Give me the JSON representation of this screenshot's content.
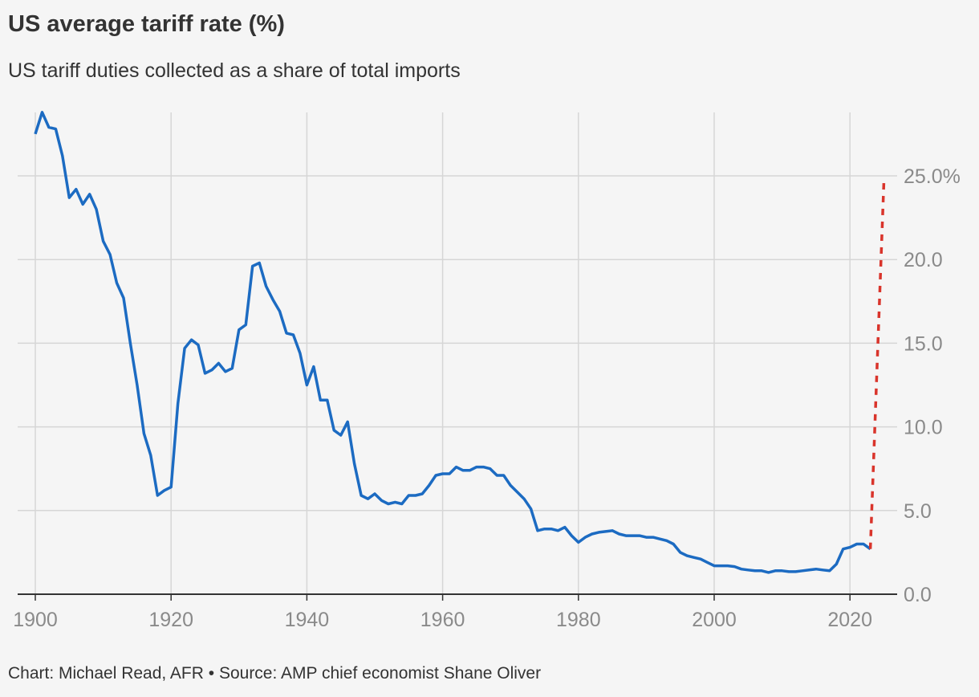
{
  "header": {
    "title": "US average tariff rate (%)",
    "subtitle": "US tariff duties collected as a share of total imports"
  },
  "footer": {
    "credit": "Chart: Michael Read, AFR • Source: AMP chief economist Shane Oliver"
  },
  "colors": {
    "background": "#f5f5f5",
    "series_line": "#1c6bc2",
    "projection": "#d9342b",
    "grid": "#d6d6d6",
    "axis": "#333333",
    "tick_text": "#8a8a8a"
  },
  "chart_data": {
    "type": "line",
    "title": "US average tariff rate (%)",
    "subtitle": "US tariff duties collected as a share of total imports",
    "xlabel": "",
    "ylabel": "",
    "xlim": [
      1900,
      2027
    ],
    "ylim": [
      0,
      29
    ],
    "grid": true,
    "y_axis_position": "right",
    "x_ticks": [
      {
        "value": 1900,
        "label": "1900"
      },
      {
        "value": 1920,
        "label": "1920"
      },
      {
        "value": 1940,
        "label": "1940"
      },
      {
        "value": 1960,
        "label": "1960"
      },
      {
        "value": 1980,
        "label": "1980"
      },
      {
        "value": 2000,
        "label": "2000"
      },
      {
        "value": 2020,
        "label": "2020"
      }
    ],
    "y_ticks": [
      {
        "value": 0,
        "label": "0.0"
      },
      {
        "value": 5,
        "label": "5.0"
      },
      {
        "value": 10,
        "label": "10.0"
      },
      {
        "value": 15,
        "label": "15.0"
      },
      {
        "value": 20,
        "label": "20.0"
      },
      {
        "value": 25,
        "label": "25.0%"
      }
    ],
    "series": [
      {
        "style": "solid",
        "color": "#1c6bc2",
        "x": [
          1900,
          1901,
          1902,
          1903,
          1904,
          1905,
          1906,
          1907,
          1908,
          1909,
          1910,
          1911,
          1912,
          1913,
          1914,
          1915,
          1916,
          1917,
          1918,
          1919,
          1920,
          1921,
          1922,
          1923,
          1924,
          1925,
          1926,
          1927,
          1928,
          1929,
          1930,
          1931,
          1932,
          1933,
          1934,
          1935,
          1936,
          1937,
          1938,
          1939,
          1940,
          1941,
          1942,
          1943,
          1944,
          1945,
          1946,
          1947,
          1948,
          1949,
          1950,
          1951,
          1952,
          1953,
          1954,
          1955,
          1956,
          1957,
          1958,
          1959,
          1960,
          1961,
          1962,
          1963,
          1964,
          1965,
          1966,
          1967,
          1968,
          1969,
          1970,
          1971,
          1972,
          1973,
          1974,
          1975,
          1976,
          1977,
          1978,
          1979,
          1980,
          1981,
          1982,
          1983,
          1984,
          1985,
          1986,
          1987,
          1988,
          1989,
          1990,
          1991,
          1992,
          1993,
          1994,
          1995,
          1996,
          1997,
          1998,
          1999,
          2000,
          2001,
          2002,
          2003,
          2004,
          2005,
          2006,
          2007,
          2008,
          2009,
          2010,
          2011,
          2012,
          2013,
          2014,
          2015,
          2016,
          2017,
          2018,
          2019,
          2020,
          2021,
          2022,
          2023
        ],
        "y": [
          27.5,
          28.8,
          27.9,
          27.8,
          26.2,
          23.7,
          24.2,
          23.3,
          23.9,
          23.0,
          21.1,
          20.3,
          18.6,
          17.7,
          15.0,
          12.5,
          9.6,
          8.3,
          5.9,
          6.2,
          6.4,
          11.4,
          14.7,
          15.2,
          14.9,
          13.2,
          13.4,
          13.8,
          13.3,
          13.5,
          15.8,
          16.1,
          19.6,
          19.8,
          18.4,
          17.6,
          16.9,
          15.6,
          15.5,
          14.4,
          12.5,
          13.6,
          11.6,
          11.6,
          9.8,
          9.5,
          10.3,
          7.8,
          5.9,
          5.7,
          6.0,
          5.6,
          5.4,
          5.5,
          5.4,
          5.9,
          5.9,
          6.0,
          6.5,
          7.1,
          7.2,
          7.2,
          7.6,
          7.4,
          7.4,
          7.6,
          7.6,
          7.5,
          7.1,
          7.1,
          6.5,
          6.1,
          5.7,
          5.1,
          3.8,
          3.9,
          3.9,
          3.8,
          4.0,
          3.5,
          3.1,
          3.4,
          3.6,
          3.7,
          3.75,
          3.8,
          3.6,
          3.5,
          3.5,
          3.5,
          3.4,
          3.4,
          3.3,
          3.2,
          3.0,
          2.5,
          2.3,
          2.2,
          2.1,
          1.9,
          1.7,
          1.7,
          1.7,
          1.65,
          1.5,
          1.45,
          1.4,
          1.4,
          1.3,
          1.4,
          1.4,
          1.35,
          1.35,
          1.4,
          1.45,
          1.5,
          1.45,
          1.4,
          1.8,
          2.7,
          2.8,
          3.0,
          3.0,
          2.7
        ]
      },
      {
        "style": "dashed",
        "color": "#d9342b",
        "x": [
          2023,
          2025
        ],
        "y": [
          2.7,
          24.7
        ]
      }
    ]
  }
}
